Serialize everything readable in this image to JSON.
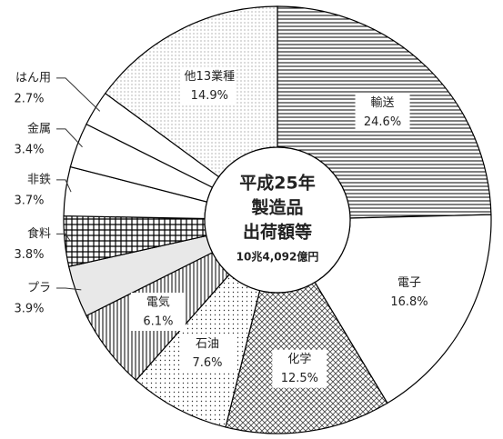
{
  "chart_data": {
    "type": "donut",
    "center_text": [
      "平成25年",
      "製造品",
      "出荷額等",
      "10兆4,092億円"
    ],
    "categories": [
      "輸送",
      "電子",
      "化学",
      "石油",
      "電気",
      "プラ",
      "食料",
      "非鉄",
      "金属",
      "はん用",
      "他13業種"
    ],
    "values": [
      24.6,
      16.8,
      12.5,
      7.6,
      6.1,
      3.9,
      3.8,
      3.7,
      3.4,
      2.7,
      14.9
    ],
    "value_labels": [
      "24.6%",
      "16.8%",
      "12.5%",
      "7.6%",
      "6.1%",
      "3.9%",
      "3.8%",
      "3.7%",
      "3.4%",
      "2.7%",
      "14.9%"
    ],
    "fills": [
      "hlines",
      "white",
      "crosshatch",
      "dots",
      "vlines",
      "gray",
      "grid",
      "white",
      "white",
      "white",
      "finedots"
    ]
  }
}
